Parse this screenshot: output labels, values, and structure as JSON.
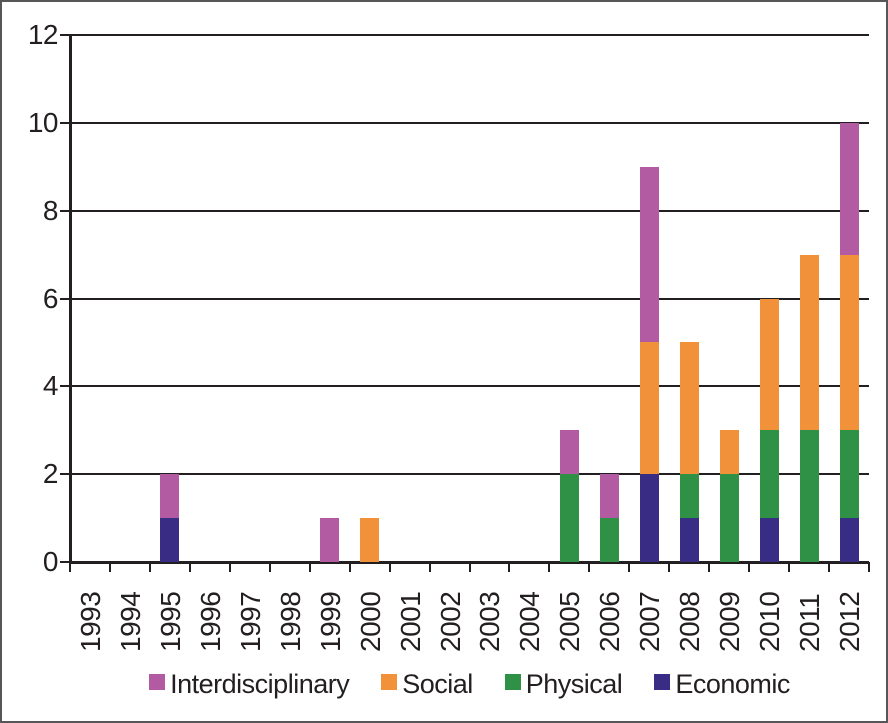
{
  "chart_data": {
    "type": "bar",
    "stacked": true,
    "categories": [
      "1993",
      "1994",
      "1995",
      "1996",
      "1997",
      "1998",
      "1999",
      "2000",
      "2001",
      "2002",
      "2003",
      "2004",
      "2005",
      "2006",
      "2007",
      "2008",
      "2009",
      "2010",
      "2011",
      "2012"
    ],
    "series": [
      {
        "name": "Economic",
        "color": "#392c85",
        "values": [
          0,
          0,
          1,
          0,
          0,
          0,
          0,
          0,
          0,
          0,
          0,
          0,
          0,
          0,
          2,
          1,
          0,
          1,
          0,
          1
        ]
      },
      {
        "name": "Physical",
        "color": "#2e9145",
        "values": [
          0,
          0,
          0,
          0,
          0,
          0,
          0,
          0,
          0,
          0,
          0,
          0,
          2,
          1,
          0,
          1,
          2,
          2,
          3,
          2
        ]
      },
      {
        "name": "Social",
        "color": "#f1913a",
        "values": [
          0,
          0,
          0,
          0,
          0,
          0,
          0,
          1,
          0,
          0,
          0,
          0,
          0,
          0,
          3,
          3,
          1,
          3,
          4,
          4
        ]
      },
      {
        "name": "Interdisciplinary",
        "color": "#b25ba3",
        "values": [
          0,
          0,
          1,
          0,
          0,
          0,
          1,
          0,
          0,
          0,
          0,
          0,
          1,
          1,
          4,
          0,
          0,
          0,
          0,
          3
        ]
      }
    ],
    "legend_order": [
      "Interdisciplinary",
      "Social",
      "Physical",
      "Economic"
    ],
    "y_axis": {
      "min": 0,
      "max": 12,
      "tick_step": 2,
      "ticks": [
        0,
        2,
        4,
        6,
        8,
        10,
        12
      ]
    },
    "x_axis": {
      "label": "",
      "tick_marks": "category_boundaries"
    },
    "grid": true,
    "legend_position": "bottom",
    "line_color": "#231f20"
  }
}
